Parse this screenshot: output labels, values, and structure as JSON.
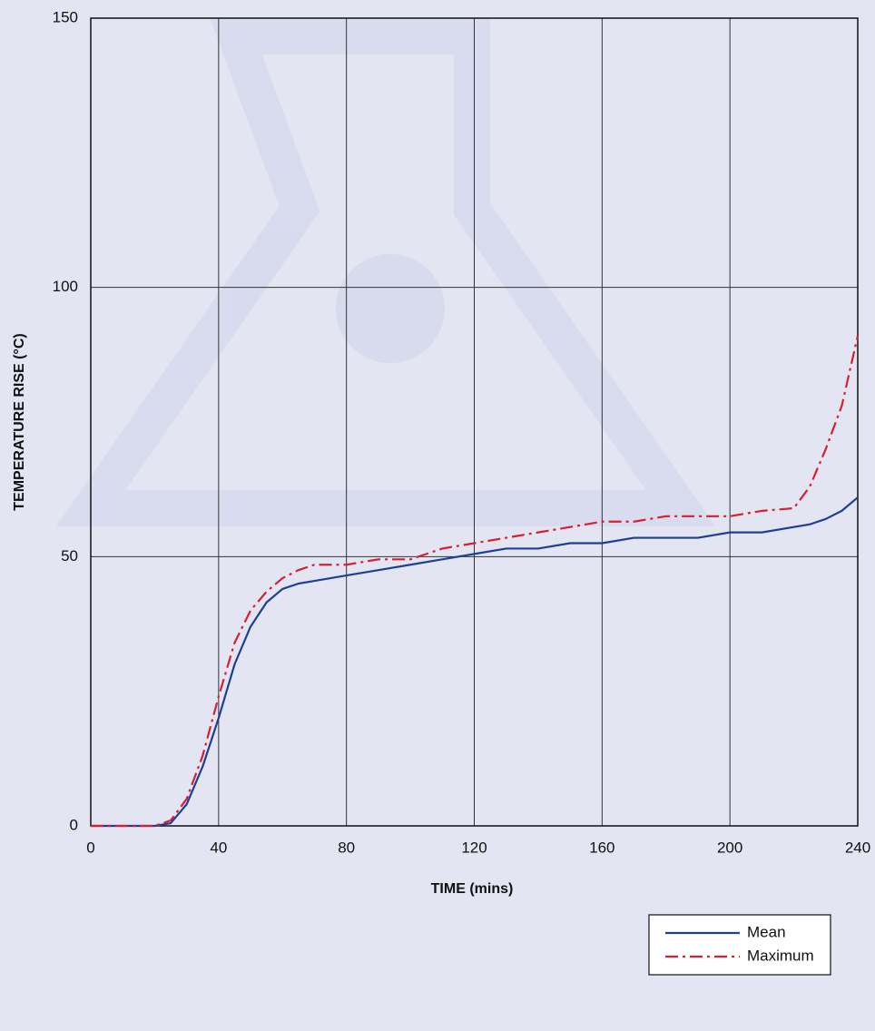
{
  "chart_data": {
    "type": "line",
    "x_label": "TIME (mins)",
    "y_label": "TEMPERATURE RISE (°C)",
    "xlim": [
      0,
      240
    ],
    "ylim": [
      0,
      150
    ],
    "xticks": [
      0,
      40,
      80,
      120,
      160,
      200,
      240
    ],
    "yticks": [
      0,
      50,
      100,
      150
    ],
    "grid": true,
    "legend": "lower right",
    "x": [
      0,
      10,
      20,
      25,
      30,
      35,
      40,
      45,
      50,
      55,
      60,
      65,
      70,
      80,
      90,
      100,
      110,
      120,
      130,
      140,
      150,
      160,
      170,
      180,
      190,
      200,
      210,
      220,
      225,
      230,
      235,
      240
    ],
    "series": [
      {
        "name": "Mean",
        "color": "#1f3f95",
        "dash": "solid",
        "values": [
          0,
          0,
          0,
          0.5,
          4,
          11,
          20,
          30,
          37,
          41.5,
          44,
          45,
          45.5,
          46.5,
          47.5,
          48.5,
          49.5,
          50.5,
          51.5,
          51.5,
          52.5,
          52.5,
          53.5,
          53.5,
          53.5,
          54.5,
          54.5,
          55.5,
          56,
          57,
          58.5,
          61
        ]
      },
      {
        "name": "Maximum",
        "color": "#d42032",
        "dash": "dashdot",
        "values": [
          0,
          0,
          0,
          1,
          5,
          13,
          24,
          34,
          40,
          43.5,
          46,
          47.5,
          48.5,
          48.5,
          49.5,
          49.5,
          51.5,
          52.5,
          53.5,
          54.5,
          55.5,
          56.5,
          56.5,
          57.5,
          57.5,
          57.5,
          58.5,
          59,
          63,
          70,
          78,
          91
        ]
      }
    ]
  }
}
